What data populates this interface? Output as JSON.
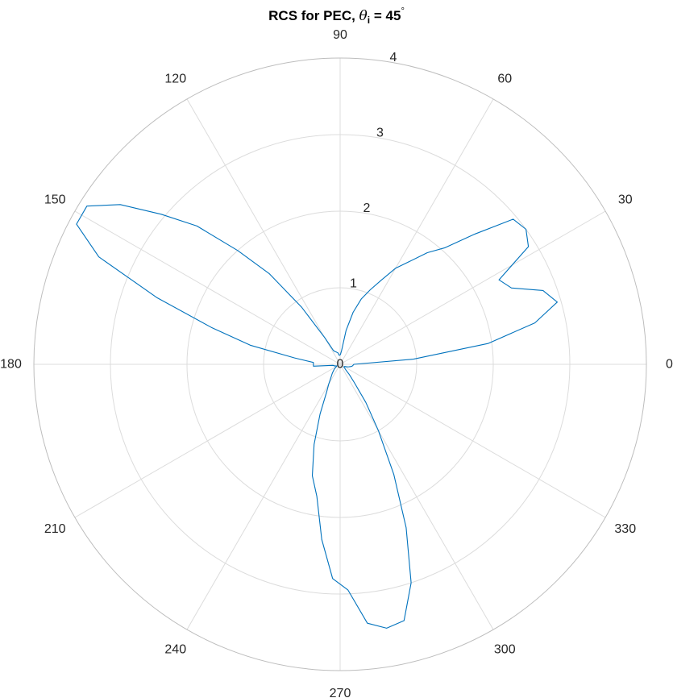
{
  "chart_data": {
    "type": "line",
    "projection": "polar",
    "title": {
      "prefix": "RCS for PEC, ",
      "symbol": "θ",
      "subscript": "i",
      "equals": " = 45",
      "superscript": "°"
    },
    "theta_ticks": [
      "0",
      "30",
      "60",
      "90",
      "120",
      "150",
      "180",
      "210",
      "240",
      "270",
      "300",
      "330"
    ],
    "theta_tick_values_deg": [
      0,
      30,
      60,
      90,
      120,
      150,
      180,
      210,
      240,
      270,
      300,
      330
    ],
    "r_ticks": [
      "0",
      "1",
      "2",
      "3",
      "4"
    ],
    "r_tick_values": [
      0,
      1,
      2,
      3,
      4
    ],
    "rlim": [
      0,
      4
    ],
    "r_tick_label_angle_deg": 80,
    "grid": true,
    "colors": {
      "series": "#0072BD",
      "grid": "#dcdcdc",
      "outer_ring": "#bdbdbd",
      "text": "#262626"
    },
    "series": [
      {
        "theta_deg": [
          0,
          4,
          8,
          12,
          16,
          20,
          24,
          28,
          32,
          36,
          40,
          44,
          48,
          52,
          56,
          60,
          64,
          68,
          72,
          76,
          80,
          84,
          88,
          92,
          96,
          100,
          104,
          108,
          112,
          116,
          120,
          124,
          128,
          132,
          136,
          140,
          144,
          148,
          152,
          156,
          160,
          164,
          168,
          172,
          176,
          180,
          184,
          188,
          192,
          196,
          200,
          204,
          208,
          212,
          216,
          220,
          224,
          228,
          232,
          236,
          240,
          244,
          248,
          252,
          256,
          260,
          264,
          268,
          272,
          276,
          280,
          284,
          288,
          292,
          296,
          300,
          304,
          308,
          312,
          316,
          320,
          324,
          328,
          332,
          336,
          340,
          344,
          348,
          352,
          356
        ],
        "r": [
          0.18,
          0.96,
          1.95,
          2.6,
          2.95,
          2.82,
          2.45,
          2.35,
          2.9,
          3.0,
          2.95,
          2.45,
          2.05,
          1.85,
          1.62,
          1.45,
          1.22,
          1.05,
          0.9,
          0.7,
          0.45,
          0.18,
          0.13,
          0.12,
          0.12,
          0.15,
          0.16,
          0.17,
          0.18,
          0.2,
          0.4,
          0.9,
          1.5,
          2.0,
          2.6,
          3.05,
          3.55,
          3.9,
          3.9,
          3.45,
          2.55,
          1.75,
          1.2,
          0.6,
          0.35,
          0.35,
          0.35,
          0.1,
          0.08,
          0.08,
          0.06,
          0.05,
          0.05,
          0.06,
          0.08,
          0.1,
          0.12,
          0.15,
          0.18,
          0.22,
          0.3,
          0.4,
          0.7,
          1.1,
          1.5,
          1.75,
          2.3,
          2.8,
          2.95,
          3.4,
          3.5,
          3.45,
          3.0,
          2.3,
          1.6,
          1.0,
          0.6,
          0.3,
          0.18,
          0.1,
          0.08,
          0.06,
          0.06,
          0.06,
          0.07,
          0.1,
          0.12,
          0.14,
          0.16,
          0.17
        ]
      }
    ]
  }
}
